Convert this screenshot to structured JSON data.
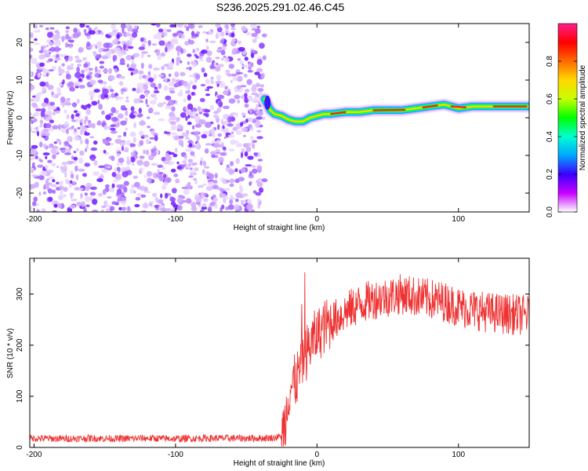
{
  "title": "S236.2025.291.02.46.C45",
  "chart_data": [
    {
      "type": "heatmap",
      "name": "spectrogram",
      "xlabel": "Height of straight line (km)",
      "ylabel": "Frequency (Hz)",
      "xlim": [
        -203,
        150
      ],
      "ylim": [
        -25,
        25
      ],
      "xticks": [
        -200,
        -100,
        0,
        100
      ],
      "yticks": [
        -20,
        -10,
        0,
        10,
        20
      ],
      "colorbar": {
        "label": "Normalized spectral amplitude",
        "range": [
          0.0,
          1.0
        ],
        "ticks": [
          0.0,
          0.2,
          0.4,
          0.6,
          0.8
        ],
        "tick_labels": [
          "0.0",
          "0.2",
          "0.4",
          "0.6",
          "0.8"
        ],
        "colors": [
          "#ffffff",
          "#c700ff",
          "#3a00ff",
          "#00a6ff",
          "#00ffd0",
          "#00ff00",
          "#c8ff00",
          "#ffd700",
          "#ff6a00",
          "#ff0000",
          "#ff1f8f"
        ]
      },
      "noise_region_x": [
        -203,
        -37
      ],
      "signal_track": {
        "x": [
          -37,
          -33,
          -30,
          -25,
          -20,
          -15,
          -10,
          -5,
          0,
          5,
          10,
          20,
          30,
          40,
          50,
          60,
          70,
          80,
          90,
          100,
          110,
          120,
          130,
          140,
          150
        ],
        "y": [
          5.0,
          2.0,
          1.0,
          0.5,
          -0.5,
          -1.0,
          -1.0,
          0.0,
          0.5,
          1.0,
          1.0,
          1.5,
          1.5,
          2.0,
          2.0,
          2.0,
          2.5,
          3.0,
          3.5,
          2.5,
          3.0,
          3.0,
          3.0,
          3.0,
          3.0
        ]
      }
    },
    {
      "type": "line",
      "name": "snr",
      "xlabel": "Height of straight line (km)",
      "ylabel": "SNR (10 * v/v)",
      "xlim": [
        -203,
        150
      ],
      "ylim": [
        0,
        370
      ],
      "xticks": [
        -200,
        -100,
        0,
        100
      ],
      "yticks": [
        0,
        100,
        200,
        300
      ],
      "series": [
        {
          "name": "SNR",
          "color": "#ee3333",
          "x": [
            -203,
            -180,
            -160,
            -140,
            -120,
            -100,
            -80,
            -60,
            -40,
            -30,
            -25,
            -22,
            -20,
            -18,
            -15,
            -12,
            -10,
            -5,
            0,
            5,
            10,
            20,
            30,
            40,
            50,
            60,
            70,
            80,
            90,
            100,
            110,
            120,
            130,
            140,
            150
          ],
          "y": [
            18,
            17,
            18,
            17,
            18,
            17,
            18,
            18,
            18,
            19,
            22,
            60,
            110,
            120,
            130,
            150,
            170,
            200,
            220,
            235,
            245,
            265,
            280,
            290,
            295,
            300,
            295,
            290,
            285,
            275,
            270,
            265,
            262,
            260,
            258
          ]
        }
      ]
    }
  ]
}
